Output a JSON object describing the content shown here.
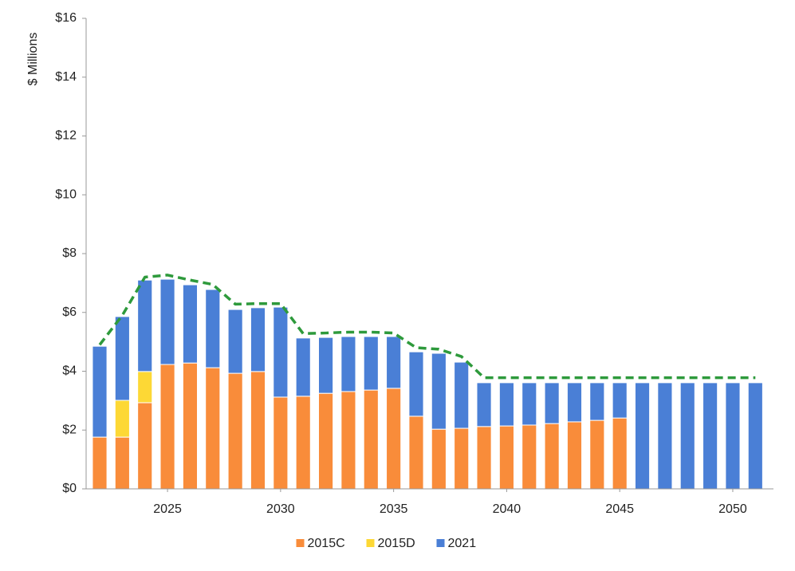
{
  "chart_data": {
    "type": "bar",
    "stacked": true,
    "y_label": "$ Millions",
    "x": [
      2022,
      2023,
      2024,
      2025,
      2026,
      2027,
      2028,
      2029,
      2030,
      2031,
      2032,
      2033,
      2034,
      2035,
      2036,
      2037,
      2038,
      2039,
      2040,
      2041,
      2042,
      2043,
      2044,
      2045,
      2046,
      2047,
      2048,
      2049,
      2050,
      2051
    ],
    "series": [
      {
        "name": "2015C",
        "color": "#f98c3a",
        "values": [
          1.76,
          1.76,
          2.93,
          4.23,
          4.28,
          4.12,
          3.93,
          3.99,
          3.12,
          3.15,
          3.25,
          3.31,
          3.36,
          3.42,
          2.47,
          2.03,
          2.06,
          2.12,
          2.14,
          2.17,
          2.22,
          2.28,
          2.33,
          2.41,
          null,
          null,
          null,
          null,
          null,
          null
        ]
      },
      {
        "name": "2015D",
        "color": "#fdd835",
        "values": [
          null,
          1.25,
          1.06,
          null,
          null,
          null,
          null,
          null,
          null,
          null,
          null,
          null,
          null,
          null,
          null,
          null,
          null,
          null,
          null,
          null,
          null,
          null,
          null,
          null,
          null,
          null,
          null,
          null,
          null,
          null
        ]
      },
      {
        "name": "2021",
        "color": "#4a7fd6",
        "values": [
          3.09,
          2.85,
          3.11,
          2.9,
          2.66,
          2.66,
          2.17,
          2.17,
          3.06,
          1.98,
          1.9,
          1.87,
          1.82,
          1.76,
          2.19,
          2.58,
          2.25,
          1.49,
          1.47,
          1.44,
          1.39,
          1.33,
          1.28,
          1.2,
          3.61,
          3.61,
          3.61,
          3.61,
          3.61,
          3.61
        ]
      }
    ],
    "line": {
      "color": "#2e9a3c",
      "dashed": true,
      "values": [
        4.9,
        5.9,
        7.2,
        7.27,
        7.1,
        6.95,
        6.28,
        6.3,
        6.3,
        5.28,
        5.3,
        5.33,
        5.33,
        5.3,
        4.8,
        4.75,
        4.5,
        3.78,
        3.78,
        3.78,
        3.78,
        3.78,
        3.78,
        3.78,
        3.78,
        3.78,
        3.78,
        3.78,
        3.78,
        3.78
      ]
    },
    "xlim": [
      2021.4,
      2051.8
    ],
    "xticks": [
      2025,
      2030,
      2035,
      2040,
      2045,
      2050
    ],
    "ylim": [
      0,
      16
    ],
    "yticks": [
      {
        "value": 0,
        "label": "$0"
      },
      {
        "value": 2,
        "label": "$2"
      },
      {
        "value": 4,
        "label": "$4"
      },
      {
        "value": 6,
        "label": "$6"
      },
      {
        "value": 8,
        "label": "$8"
      },
      {
        "value": 10,
        "label": "$10"
      },
      {
        "value": 12,
        "label": "$12"
      },
      {
        "value": 14,
        "label": "$14"
      },
      {
        "value": 16,
        "label": "$16"
      }
    ],
    "legend": "bottom"
  }
}
